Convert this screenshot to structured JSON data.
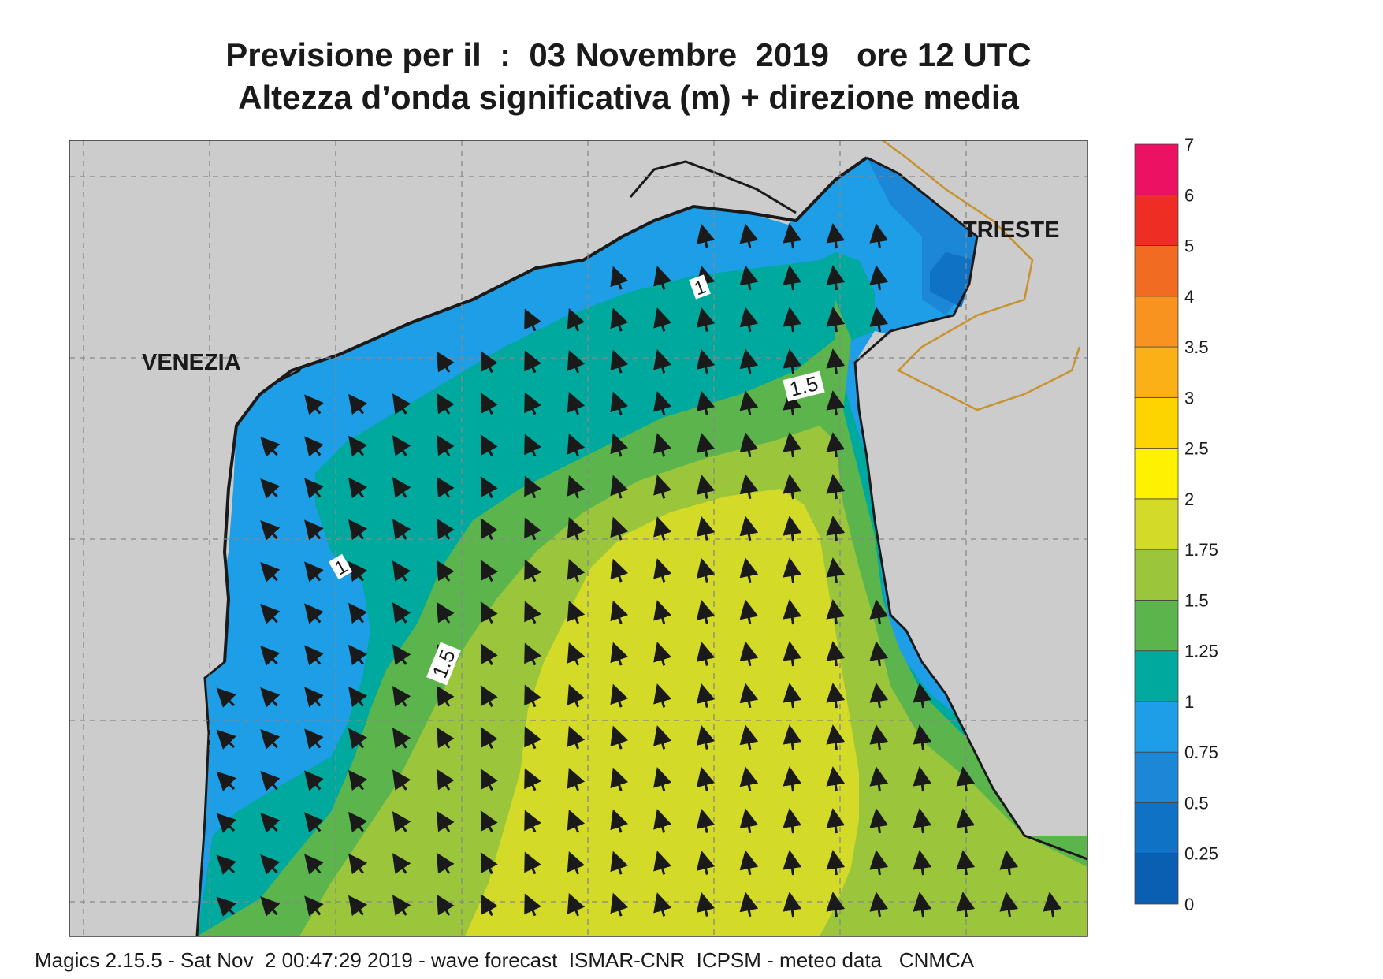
{
  "title": {
    "line1": "Previsione per il  :  03 Novembre  2019   ore 12 UTC",
    "line2": "Altezza d’onda significativa (m) + direzione media"
  },
  "places": [
    {
      "name": "VENEZIA"
    },
    {
      "name": "TRIESTE"
    }
  ],
  "contour_labels": [
    "1",
    "1.5",
    "1",
    "1.5"
  ],
  "legend": {
    "levels": [
      "0",
      "0.25",
      "0.5",
      "0.75",
      "1",
      "1.25",
      "1.5",
      "1.75",
      "2",
      "2.5",
      "3",
      "3.5",
      "4",
      "5",
      "6",
      "7"
    ],
    "colors": [
      "#0b5fb3",
      "#1072c4",
      "#1c87d6",
      "#1e9ee6",
      "#00a99d",
      "#5cb54c",
      "#9bc63b",
      "#d4da28",
      "#fff200",
      "#fdd400",
      "#fbb017",
      "#f7931e",
      "#f26b22",
      "#ee2d24",
      "#ec1163"
    ]
  },
  "colors": {
    "land": "#cccccc",
    "coast": "#1a1a1a",
    "border": "#c8922e",
    "arrow": "#1a1a1a"
  },
  "footer": "Magics 2.15.5 - Sat Nov  2 00:47:29 2019 - wave forecast  ISMAR-CNR  ICPSM - meteo data   CNMCA"
}
